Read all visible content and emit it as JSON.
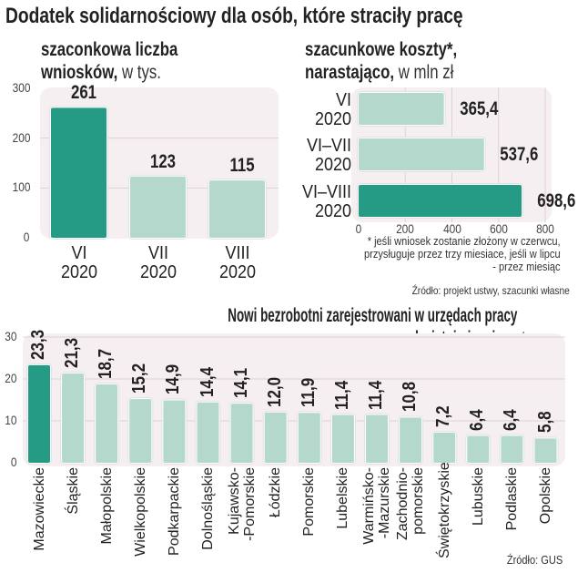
{
  "header": {
    "title": "Dodatek solidarnościowy dla osób, które straciły pracę"
  },
  "colors": {
    "highlight": "#259a84",
    "bar": "#b4d9cc",
    "panel": "#f6eff1",
    "grid": "#ddd2d6"
  },
  "chart_data": [
    {
      "type": "bar",
      "title_bold_1": "szaconkowa liczba",
      "title_bold_2": "wniosków,",
      "title_unit": "w tys.",
      "categories": [
        [
          "VI",
          "2020"
        ],
        [
          "VII",
          "2020"
        ],
        [
          "VIII",
          "2020"
        ]
      ],
      "values": [
        261,
        123,
        115
      ],
      "value_labels": [
        "261",
        "123",
        "115"
      ],
      "highlight_index": 0,
      "ylim": [
        0,
        300
      ],
      "yticks": [
        "0",
        "100",
        "200",
        "300"
      ],
      "grid": true
    },
    {
      "type": "bar",
      "orientation": "horizontal",
      "title_bold_1": "szacunkowe koszty*,",
      "title_bold_2": "narastająco,",
      "title_unit": "w mln zł",
      "categories": [
        [
          "VI",
          "2020"
        ],
        [
          "VI–VII",
          "2020"
        ],
        [
          "VI–VIII",
          "2020"
        ]
      ],
      "values": [
        365.4,
        537.6,
        698.6
      ],
      "value_labels": [
        "365,4",
        "537,6",
        "698,6"
      ],
      "highlight_index": 2,
      "xlim": [
        0,
        800
      ],
      "xticks": [
        "0",
        "200",
        "400",
        "600",
        "800"
      ],
      "grid": true,
      "footnote": [
        "* jeśli wniosek zostanie złożony w czerwcu,",
        "przysługuje przez trzy miesiace, jeśli w lipcu",
        "- przez miesiąc"
      ],
      "source": "Źródło: projekt ustwy, szacunki własne"
    },
    {
      "type": "bar",
      "title_bold_1": "Nowi bezrobotni zarejestrowani w urzędach pracy",
      "title_bold_2": "w kwietniu i maju,",
      "title_unit": "w tys.",
      "categories": [
        [
          "Mazowieckie"
        ],
        [
          "Śląskie"
        ],
        [
          "Małopolskie"
        ],
        [
          "Wielkopolskie"
        ],
        [
          "Podkarpackie"
        ],
        [
          "Dolnośląskie"
        ],
        [
          "Kujawsko-",
          "-Pomorskie"
        ],
        [
          "Łódzkie"
        ],
        [
          "Pomorskie"
        ],
        [
          "Lubelskie"
        ],
        [
          "Warmińsko-",
          "-Mazurskie"
        ],
        [
          "Zachodnio-",
          "pomorskie"
        ],
        [
          "Świętokrzyskie"
        ],
        [
          "Lubuskie"
        ],
        [
          "Podlaskie"
        ],
        [
          "Opolskie"
        ]
      ],
      "values": [
        23.3,
        21.3,
        18.7,
        15.2,
        14.9,
        14.4,
        14.1,
        12.0,
        11.9,
        11.4,
        11.4,
        10.8,
        7.2,
        6.4,
        6.4,
        5.8
      ],
      "value_labels": [
        "23,3",
        "21,3",
        "18,7",
        "15,2",
        "14,9",
        "14,4",
        "14,1",
        "12,0",
        "11,9",
        "11,4",
        "11,4",
        "10,8",
        "7,2",
        "6,4",
        "6,4",
        "5,8"
      ],
      "highlight_index": 0,
      "ylim": [
        0,
        30
      ],
      "yticks": [
        "0",
        "10",
        "20",
        "30"
      ],
      "grid": true,
      "source": "Źródło: GUS"
    }
  ]
}
